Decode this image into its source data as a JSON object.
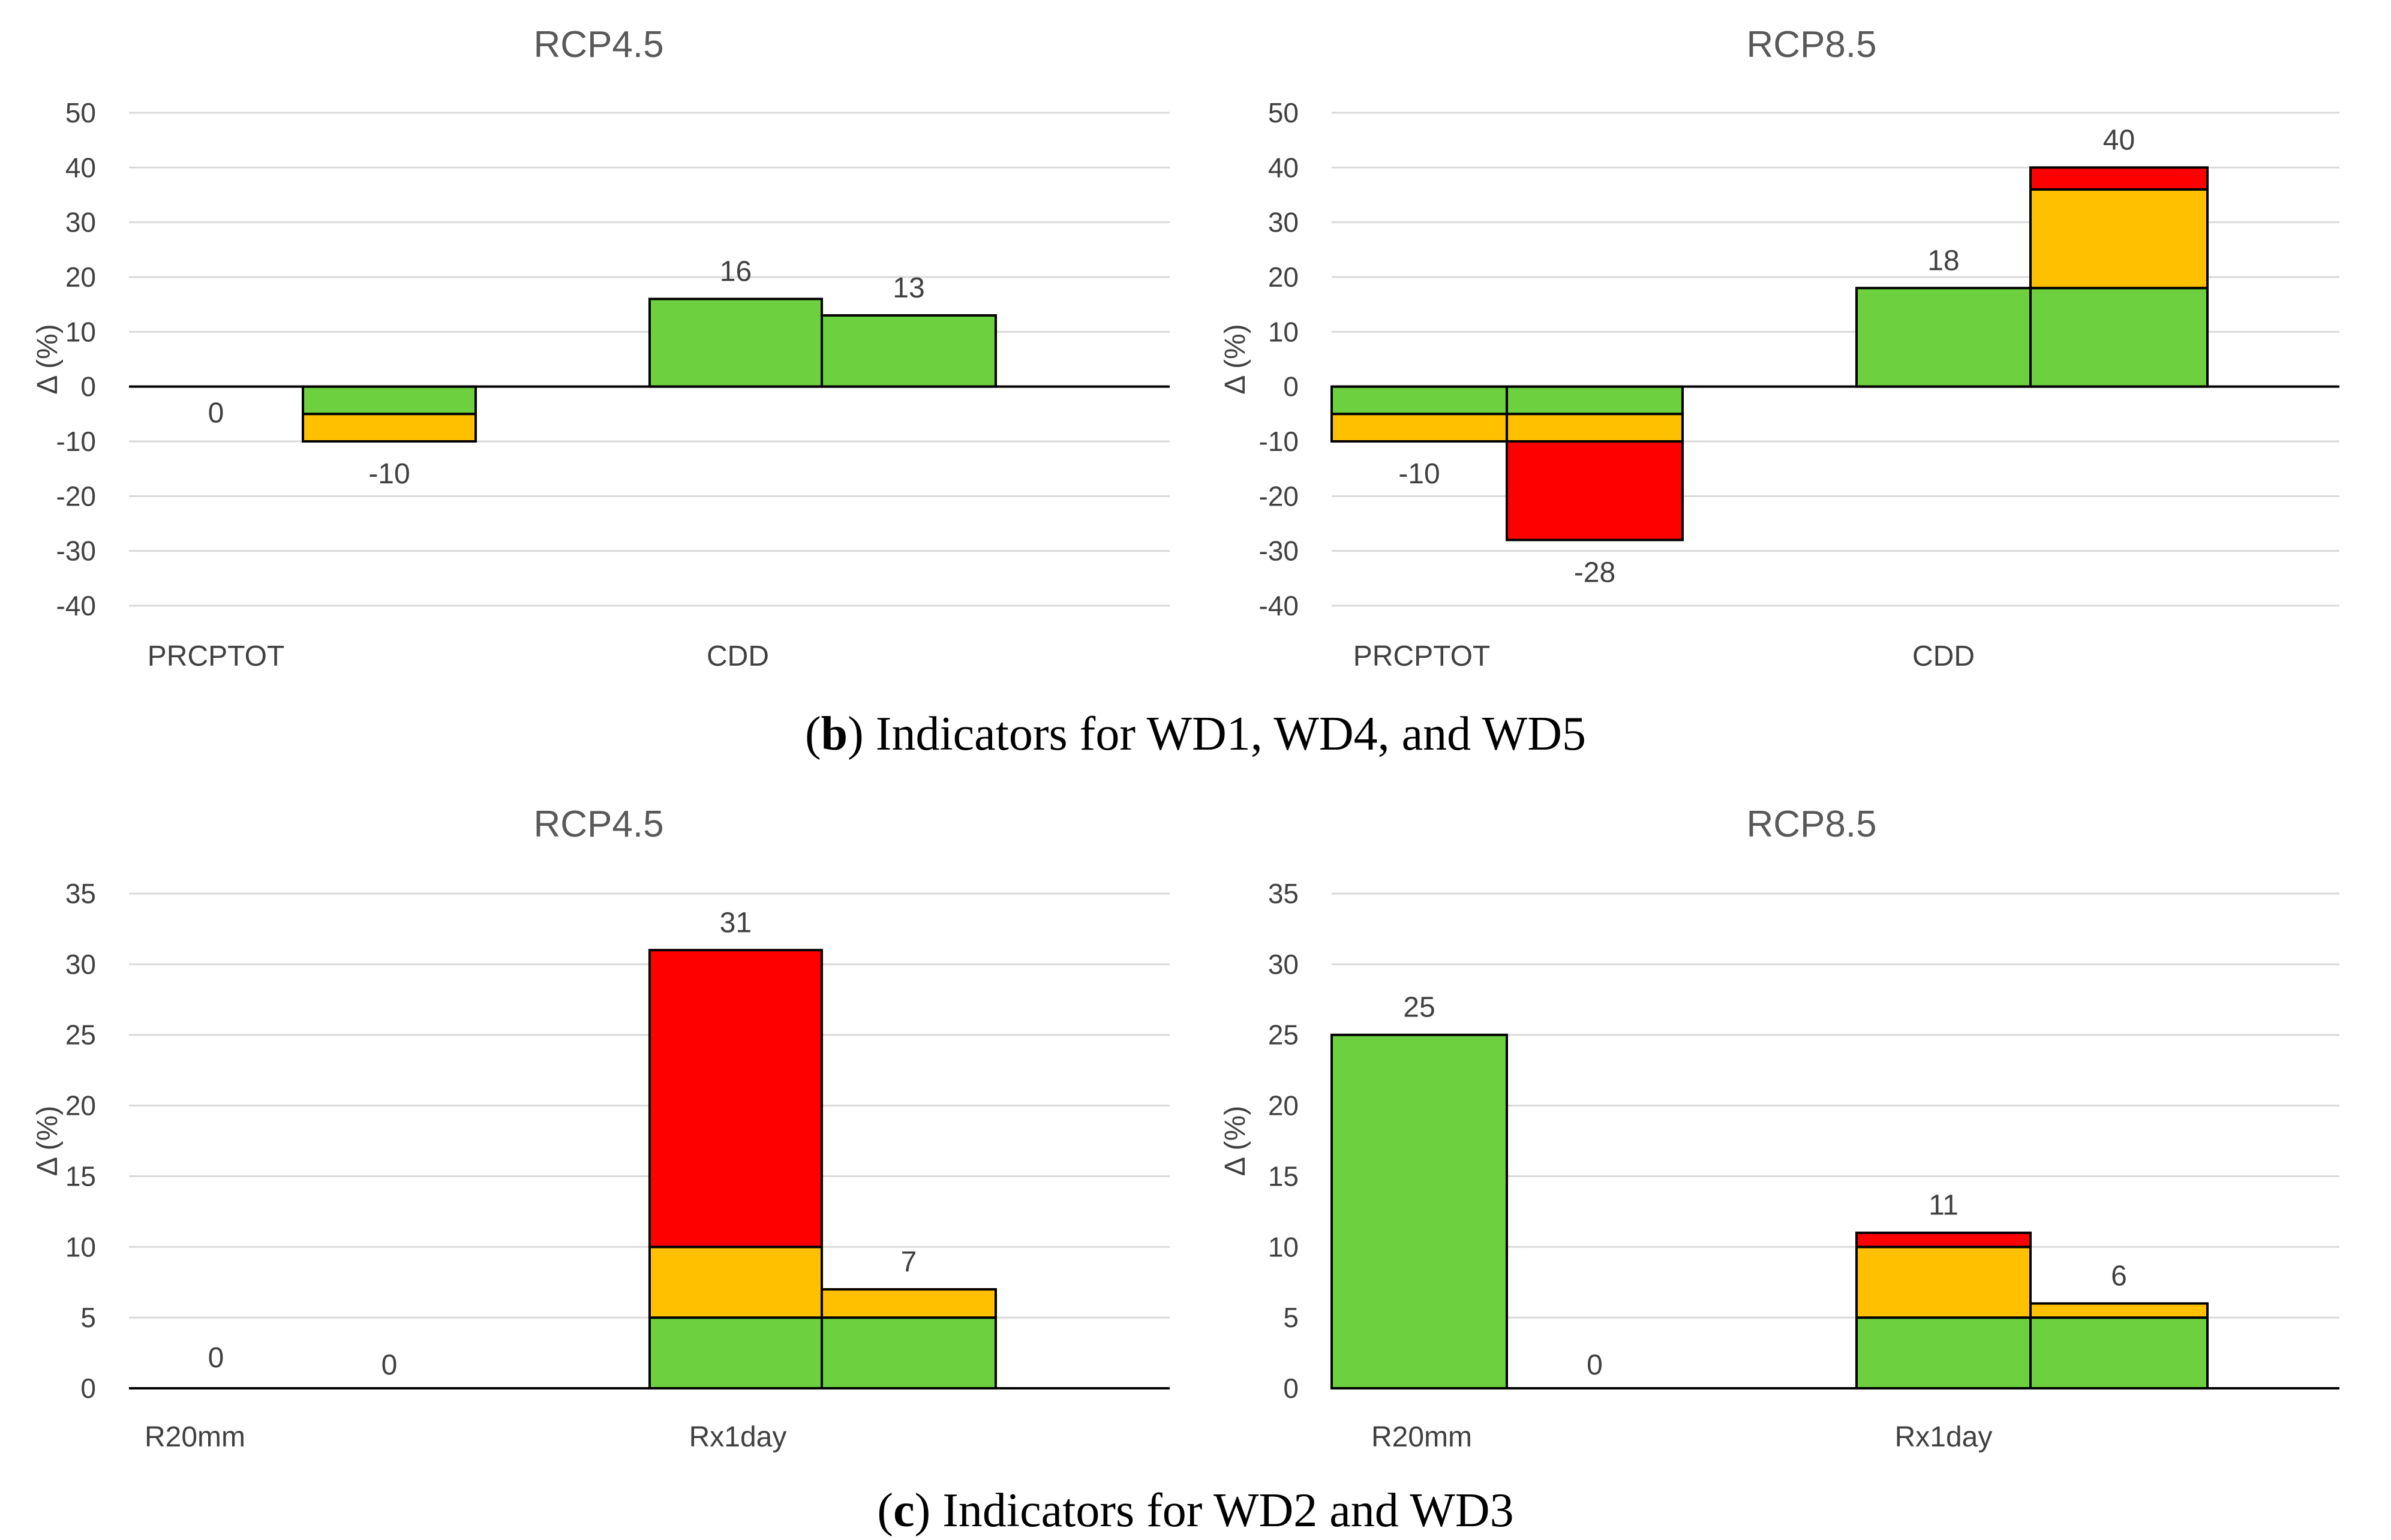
{
  "figure": {
    "captions": [
      {
        "prefix": "(",
        "letter": "b",
        "text": ") Indicators for WD1, WD4, and WD5"
      },
      {
        "prefix": "(",
        "letter": "c",
        "text": ") Indicators for WD2 and WD3"
      }
    ]
  },
  "colors": {
    "green": "#6DD03F",
    "orange": "#FFC000",
    "red": "#FF0000",
    "grid": "#D9D9D9",
    "axis": "#404040"
  },
  "chart_data": [
    {
      "type": "bar",
      "stacked": true,
      "panel": "b-left",
      "title": "RCP4.5",
      "ylabel": "Δ (%)",
      "ylim": [
        -40,
        50
      ],
      "yticks": [
        50,
        40,
        30,
        20,
        10,
        0,
        -10,
        -20,
        -30,
        -40
      ],
      "categories": [
        "PRCPTOT",
        "CDD"
      ],
      "series": [
        "green",
        "orange",
        "red"
      ],
      "bars": [
        {
          "category": "PRCPTOT",
          "segments": [],
          "label": "0"
        },
        {
          "category": "PRCPTOT",
          "segments": [
            {
              "series": "green",
              "from": 0,
              "to": -5
            },
            {
              "series": "orange",
              "from": -5,
              "to": -10
            }
          ],
          "label": "-10"
        },
        {
          "category": "CDD",
          "segments": [
            {
              "series": "green",
              "from": 0,
              "to": 16
            }
          ],
          "label": "16"
        },
        {
          "category": "CDD",
          "segments": [
            {
              "series": "green",
              "from": 0,
              "to": 13
            }
          ],
          "label": "13"
        }
      ]
    },
    {
      "type": "bar",
      "stacked": true,
      "panel": "b-right",
      "title": "RCP8.5",
      "ylabel": "Δ (%)",
      "ylim": [
        -40,
        50
      ],
      "yticks": [
        50,
        40,
        30,
        20,
        10,
        0,
        -10,
        -20,
        -30,
        -40
      ],
      "categories": [
        "PRCPTOT",
        "CDD"
      ],
      "series": [
        "green",
        "orange",
        "red"
      ],
      "bars": [
        {
          "category": "PRCPTOT",
          "segments": [
            {
              "series": "green",
              "from": 0,
              "to": -5
            },
            {
              "series": "orange",
              "from": -5,
              "to": -10
            }
          ],
          "label": "-10"
        },
        {
          "category": "PRCPTOT",
          "segments": [
            {
              "series": "green",
              "from": 0,
              "to": -5
            },
            {
              "series": "orange",
              "from": -5,
              "to": -10
            },
            {
              "series": "red",
              "from": -10,
              "to": -28
            }
          ],
          "label": "-28"
        },
        {
          "category": "CDD",
          "segments": [
            {
              "series": "green",
              "from": 0,
              "to": 18
            }
          ],
          "label": "18"
        },
        {
          "category": "CDD",
          "segments": [
            {
              "series": "green",
              "from": 0,
              "to": 18
            },
            {
              "series": "orange",
              "from": 18,
              "to": 36
            },
            {
              "series": "red",
              "from": 36,
              "to": 40
            }
          ],
          "label": "40"
        }
      ]
    },
    {
      "type": "bar",
      "stacked": true,
      "panel": "c-left",
      "title": "RCP4.5",
      "ylabel": "Δ (%)",
      "ylim": [
        0,
        35
      ],
      "yticks": [
        35,
        30,
        25,
        20,
        15,
        10,
        5,
        0
      ],
      "categories": [
        "R20mm",
        "Rx1day"
      ],
      "series": [
        "green",
        "orange",
        "red"
      ],
      "bars": [
        {
          "category": "R20mm",
          "segments": [],
          "label": "0"
        },
        {
          "category": "R20mm",
          "segments": [],
          "label": "0"
        },
        {
          "category": "Rx1day",
          "segments": [
            {
              "series": "green",
              "from": 0,
              "to": 5
            },
            {
              "series": "orange",
              "from": 5,
              "to": 10
            },
            {
              "series": "red",
              "from": 10,
              "to": 31
            }
          ],
          "label": "31"
        },
        {
          "category": "Rx1day",
          "segments": [
            {
              "series": "green",
              "from": 0,
              "to": 5
            },
            {
              "series": "orange",
              "from": 5,
              "to": 7
            }
          ],
          "label": "7"
        }
      ]
    },
    {
      "type": "bar",
      "stacked": true,
      "panel": "c-right",
      "title": "RCP8.5",
      "ylabel": "Δ (%)",
      "ylim": [
        0,
        35
      ],
      "yticks": [
        35,
        30,
        25,
        20,
        15,
        10,
        5,
        0
      ],
      "categories": [
        "R20mm",
        "Rx1day"
      ],
      "series": [
        "green",
        "orange",
        "red"
      ],
      "bars": [
        {
          "category": "R20mm",
          "segments": [
            {
              "series": "green",
              "from": 0,
              "to": 25
            }
          ],
          "label": "25"
        },
        {
          "category": "R20mm",
          "segments": [],
          "label": "0"
        },
        {
          "category": "Rx1day",
          "segments": [
            {
              "series": "green",
              "from": 0,
              "to": 5
            },
            {
              "series": "orange",
              "from": 5,
              "to": 10
            },
            {
              "series": "red",
              "from": 10,
              "to": 11
            }
          ],
          "label": "11"
        },
        {
          "category": "Rx1day",
          "segments": [
            {
              "series": "green",
              "from": 0,
              "to": 5
            },
            {
              "series": "orange",
              "from": 5,
              "to": 6
            }
          ],
          "label": "6"
        }
      ]
    }
  ]
}
